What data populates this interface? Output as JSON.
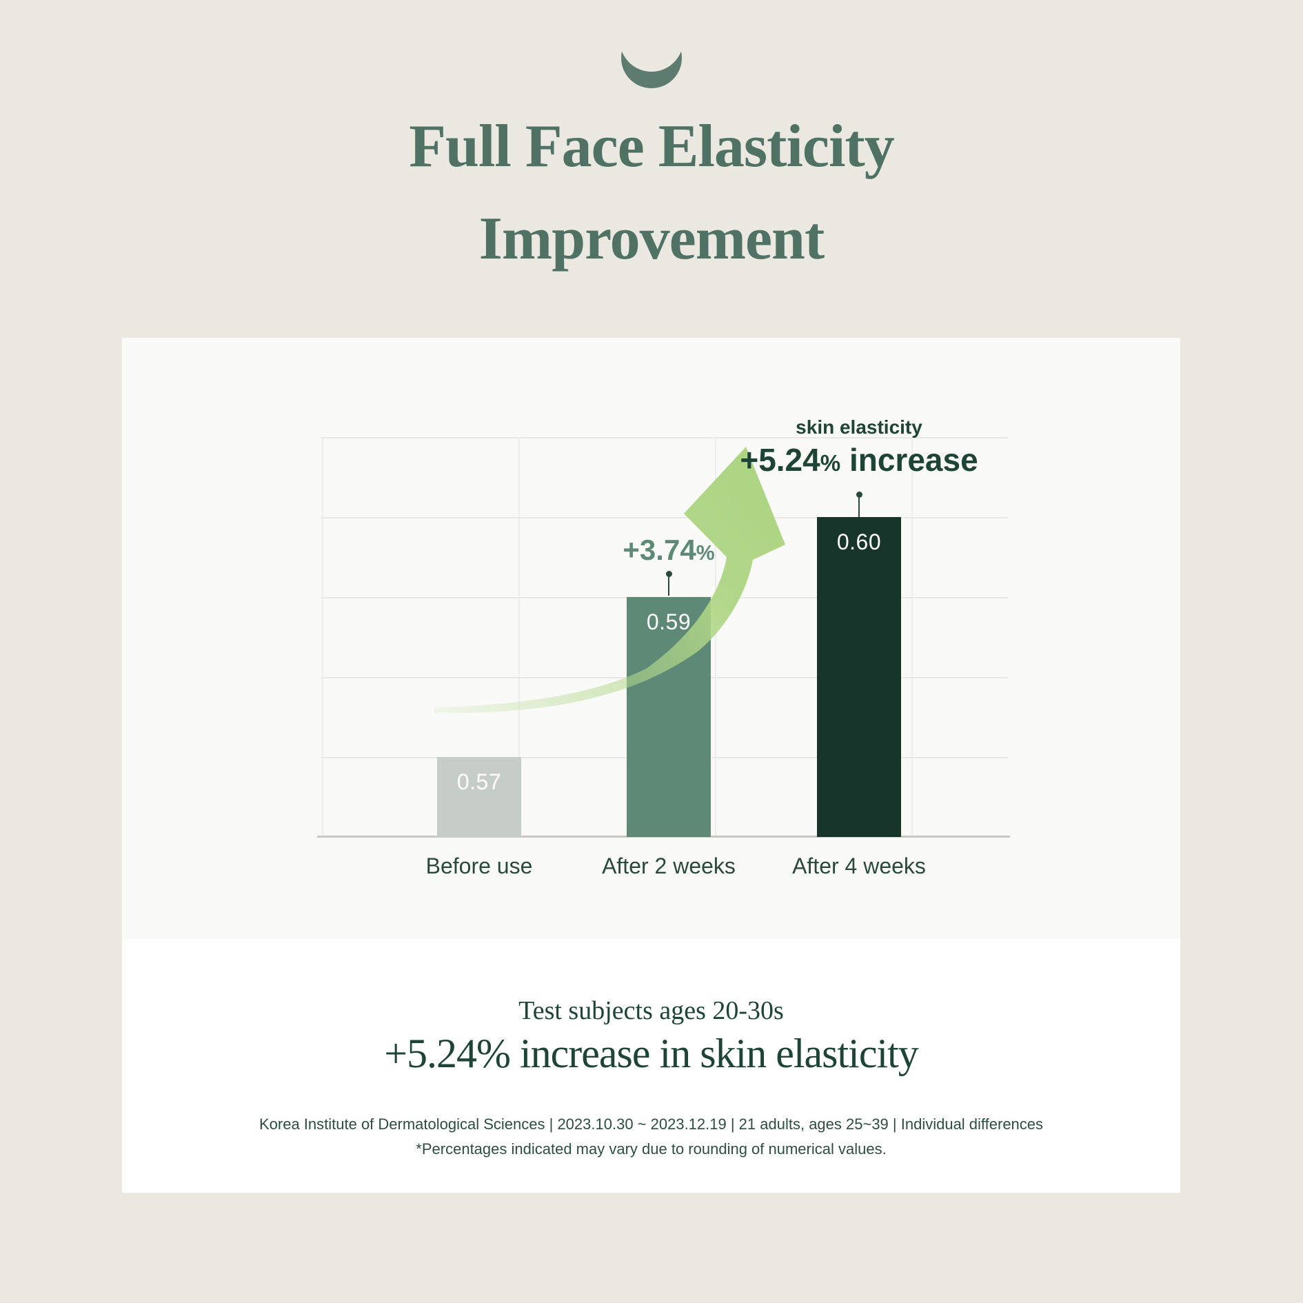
{
  "colors": {
    "page_bg": "#eae8e1",
    "chart_card_bg": "#f9f9f7",
    "white_card_bg": "#ffffff",
    "title": "#4f7265",
    "moon": "#5d7b6e",
    "dark_green": "#1d4437",
    "mid_green": "#5e8977",
    "bar_before": "#c6cdc8",
    "bar_2weeks": "#5e8977",
    "bar_4weeks": "#17352b",
    "arrow": "#b2d88a",
    "hgrid": "#e9e9e6",
    "vgrid": "#ededeb",
    "axis": "#c7c7c4",
    "label_text": "#2a493d",
    "footnote": "#2e4d42",
    "bar_value": "#ffffff"
  },
  "header": {
    "title_line1": "Full Face Elasticity",
    "title_line2": "Improvement"
  },
  "chart_data": {
    "type": "bar",
    "title": "Full Face Elasticity Improvement",
    "categories": [
      "Before use",
      "After 2 weeks",
      "After 4 weeks"
    ],
    "values": [
      0.57,
      0.59,
      0.6
    ],
    "bar_labels": [
      "0.57",
      "0.59",
      "0.60"
    ],
    "bar_colors": [
      "#c6cdc8",
      "#5e8977",
      "#17352b"
    ],
    "xlabel": "",
    "ylabel": "skin elasticity",
    "ylim": [
      0.56,
      0.61
    ],
    "gridline_step": 0.01,
    "grid": "horizontal and vertical light gridlines, no axis tick labels",
    "legend": "none",
    "annotations": [
      {
        "target": "After 2 weeks",
        "text": "+3.74%"
      },
      {
        "target": "After 4 weeks",
        "text": "skin elasticity +5.24% increase"
      }
    ]
  },
  "annotations": {
    "two_weeks": {
      "value": "+3.74",
      "percent": "%"
    },
    "four_weeks": {
      "label": "skin elasticity",
      "value": "+5.24",
      "percent": "%",
      "suffix": " increase"
    }
  },
  "summary": {
    "line1": "Test subjects ages 20-30s",
    "line2": "+5.24% increase in skin elasticity",
    "footnote1": "Korea Institute of Dermatological Sciences | 2023.10.30 ~ 2023.12.19 | 21 adults, ages 25~39 |  Individual differences",
    "footnote2": "*Percentages indicated may vary due to rounding of numerical values."
  }
}
